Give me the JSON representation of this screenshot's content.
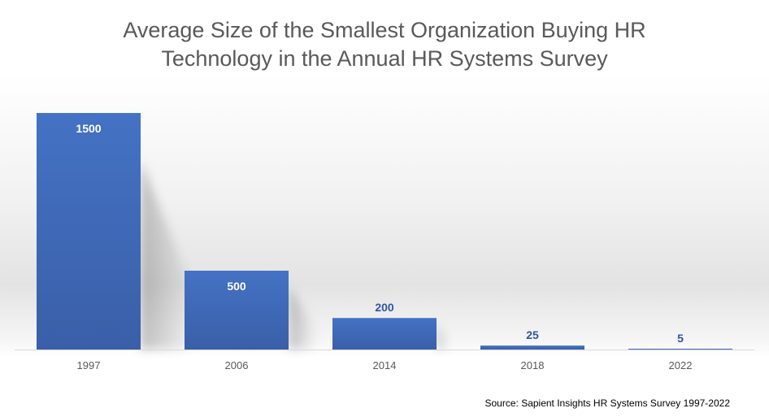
{
  "chart_data": {
    "type": "bar",
    "title_lines": [
      "Average Size of the Smallest Organization Buying HR",
      "Technology in the Annual HR Systems Survey"
    ],
    "categories": [
      "1997",
      "2006",
      "2014",
      "2018",
      "2022"
    ],
    "series": [
      {
        "values": [
          1500,
          500,
          200,
          25,
          5
        ],
        "data_labels": [
          "1500",
          "500",
          "200",
          "25",
          "5"
        ]
      }
    ],
    "xlabel": "",
    "ylabel": "",
    "ylim": [
      0,
      1500
    ],
    "grid": false,
    "legend": "none",
    "colors": {
      "bar_top": "#4472C4",
      "bar_bottom": "#3A5FA8",
      "label_inside": "#FFFFFF",
      "label_outside": "#2F55A4",
      "axis_text": "#595959",
      "axis_line": "#D9D9D9"
    }
  },
  "source": "Source: Sapient Insights HR Systems Survey 1997-2022"
}
